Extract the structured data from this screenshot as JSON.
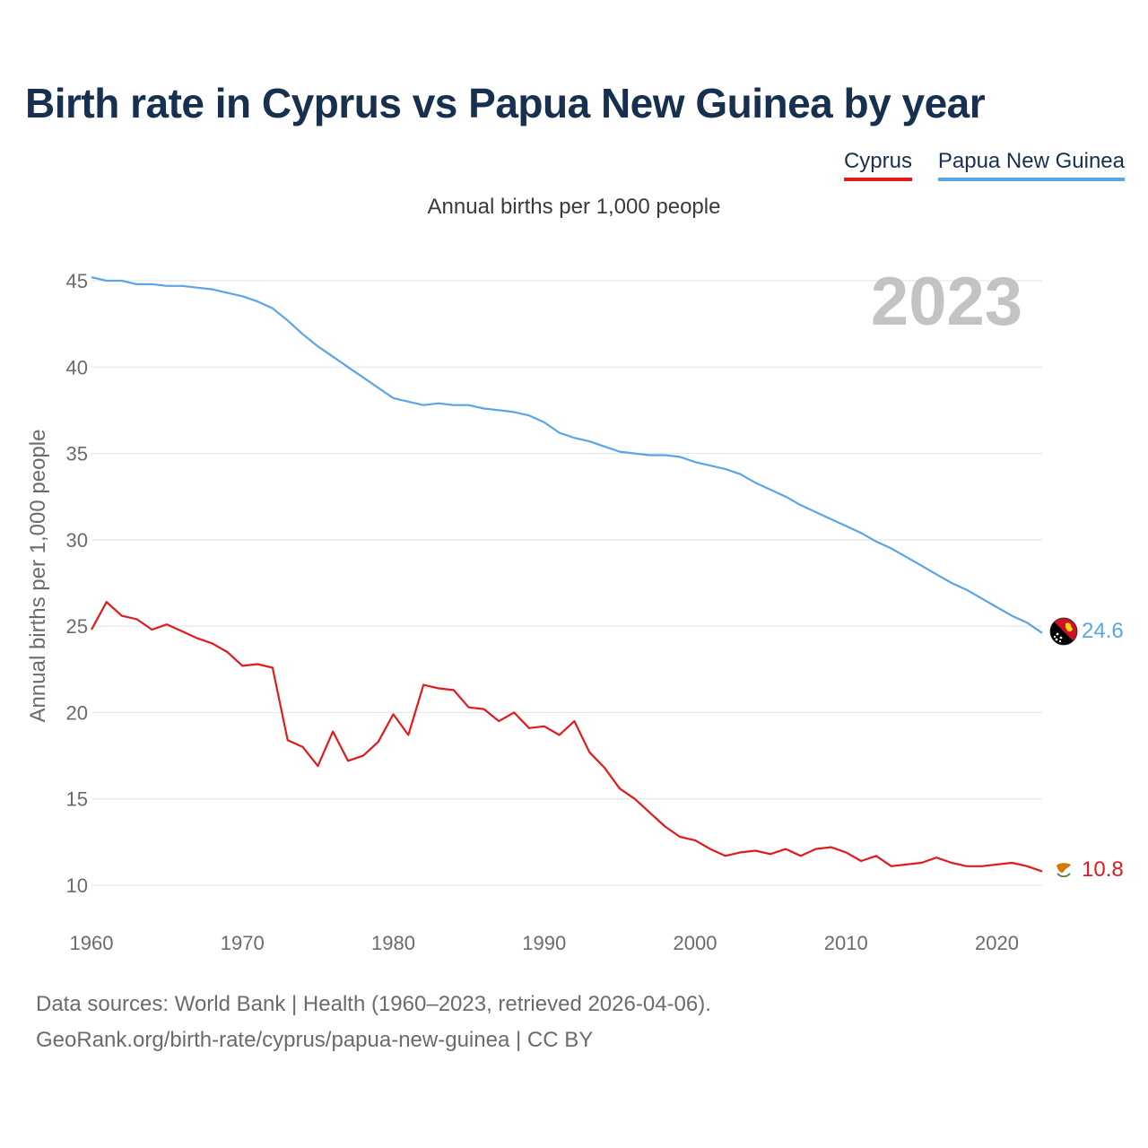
{
  "title": "Birth rate in Cyprus vs Papua New Guinea by year",
  "subtitle": "Annual births per 1,000 people",
  "legend": [
    {
      "label": "Cyprus",
      "color": "#e31a1c"
    },
    {
      "label": "Papua New Guinea",
      "color": "#5aa5e6"
    }
  ],
  "year_display": "2023",
  "source_line1": "Data sources: World Bank | Health (1960–2023, retrieved 2026-04-06).",
  "source_line2": "GeoRank.org/birth-rate/cyprus/papua-new-guinea | CC BY",
  "chart_data": {
    "type": "line",
    "title": "Birth rate in Cyprus vs Papua New Guinea by year",
    "xlabel": "",
    "ylabel": "Annual births per 1,000 people",
    "xlim": [
      1960,
      2023
    ],
    "ylim": [
      10,
      45
    ],
    "xticks": [
      1960,
      1970,
      1980,
      1990,
      2000,
      2010,
      2020
    ],
    "yticks": [
      10,
      15,
      20,
      25,
      30,
      35,
      40,
      45
    ],
    "grid": "horizontal",
    "x": [
      1960,
      1961,
      1962,
      1963,
      1964,
      1965,
      1966,
      1967,
      1968,
      1969,
      1970,
      1971,
      1972,
      1973,
      1974,
      1975,
      1976,
      1977,
      1978,
      1979,
      1980,
      1981,
      1982,
      1983,
      1984,
      1985,
      1986,
      1987,
      1988,
      1989,
      1990,
      1991,
      1992,
      1993,
      1994,
      1995,
      1996,
      1997,
      1998,
      1999,
      2000,
      2001,
      2002,
      2003,
      2004,
      2005,
      2006,
      2007,
      2008,
      2009,
      2010,
      2011,
      2012,
      2013,
      2014,
      2015,
      2016,
      2017,
      2018,
      2019,
      2020,
      2021,
      2022,
      2023
    ],
    "series": [
      {
        "name": "Cyprus",
        "color": "#e31a1c",
        "end_label": "10.8",
        "values": [
          24.8,
          26.4,
          25.6,
          25.4,
          24.8,
          25.1,
          24.7,
          24.3,
          24.0,
          23.5,
          22.7,
          22.8,
          22.6,
          18.4,
          18.0,
          16.9,
          18.9,
          17.2,
          17.5,
          18.3,
          19.9,
          18.7,
          21.6,
          21.4,
          21.3,
          20.3,
          20.2,
          19.5,
          20.0,
          19.1,
          19.2,
          18.7,
          19.5,
          17.7,
          16.8,
          15.6,
          15.0,
          14.2,
          13.4,
          12.8,
          12.6,
          12.1,
          11.7,
          11.9,
          12.0,
          11.8,
          12.1,
          11.7,
          12.1,
          12.2,
          11.9,
          11.4,
          11.7,
          11.1,
          11.2,
          11.3,
          11.6,
          11.3,
          11.1,
          11.1,
          11.2,
          11.3,
          11.1,
          10.8
        ]
      },
      {
        "name": "Papua New Guinea",
        "color": "#5aa5e6",
        "end_label": "24.6",
        "values": [
          45.2,
          45.0,
          45.0,
          44.8,
          44.8,
          44.7,
          44.7,
          44.6,
          44.5,
          44.3,
          44.1,
          43.8,
          43.4,
          42.7,
          41.9,
          41.2,
          40.6,
          40.0,
          39.4,
          38.8,
          38.2,
          38.0,
          37.8,
          37.9,
          37.8,
          37.8,
          37.6,
          37.5,
          37.4,
          37.2,
          36.8,
          36.2,
          35.9,
          35.7,
          35.4,
          35.1,
          35.0,
          34.9,
          34.9,
          34.8,
          34.5,
          34.3,
          34.1,
          33.8,
          33.3,
          32.9,
          32.5,
          32.0,
          31.6,
          31.2,
          30.8,
          30.4,
          29.9,
          29.5,
          29.0,
          28.5,
          28.0,
          27.5,
          27.1,
          26.6,
          26.1,
          25.6,
          25.2,
          24.6
        ]
      }
    ]
  }
}
